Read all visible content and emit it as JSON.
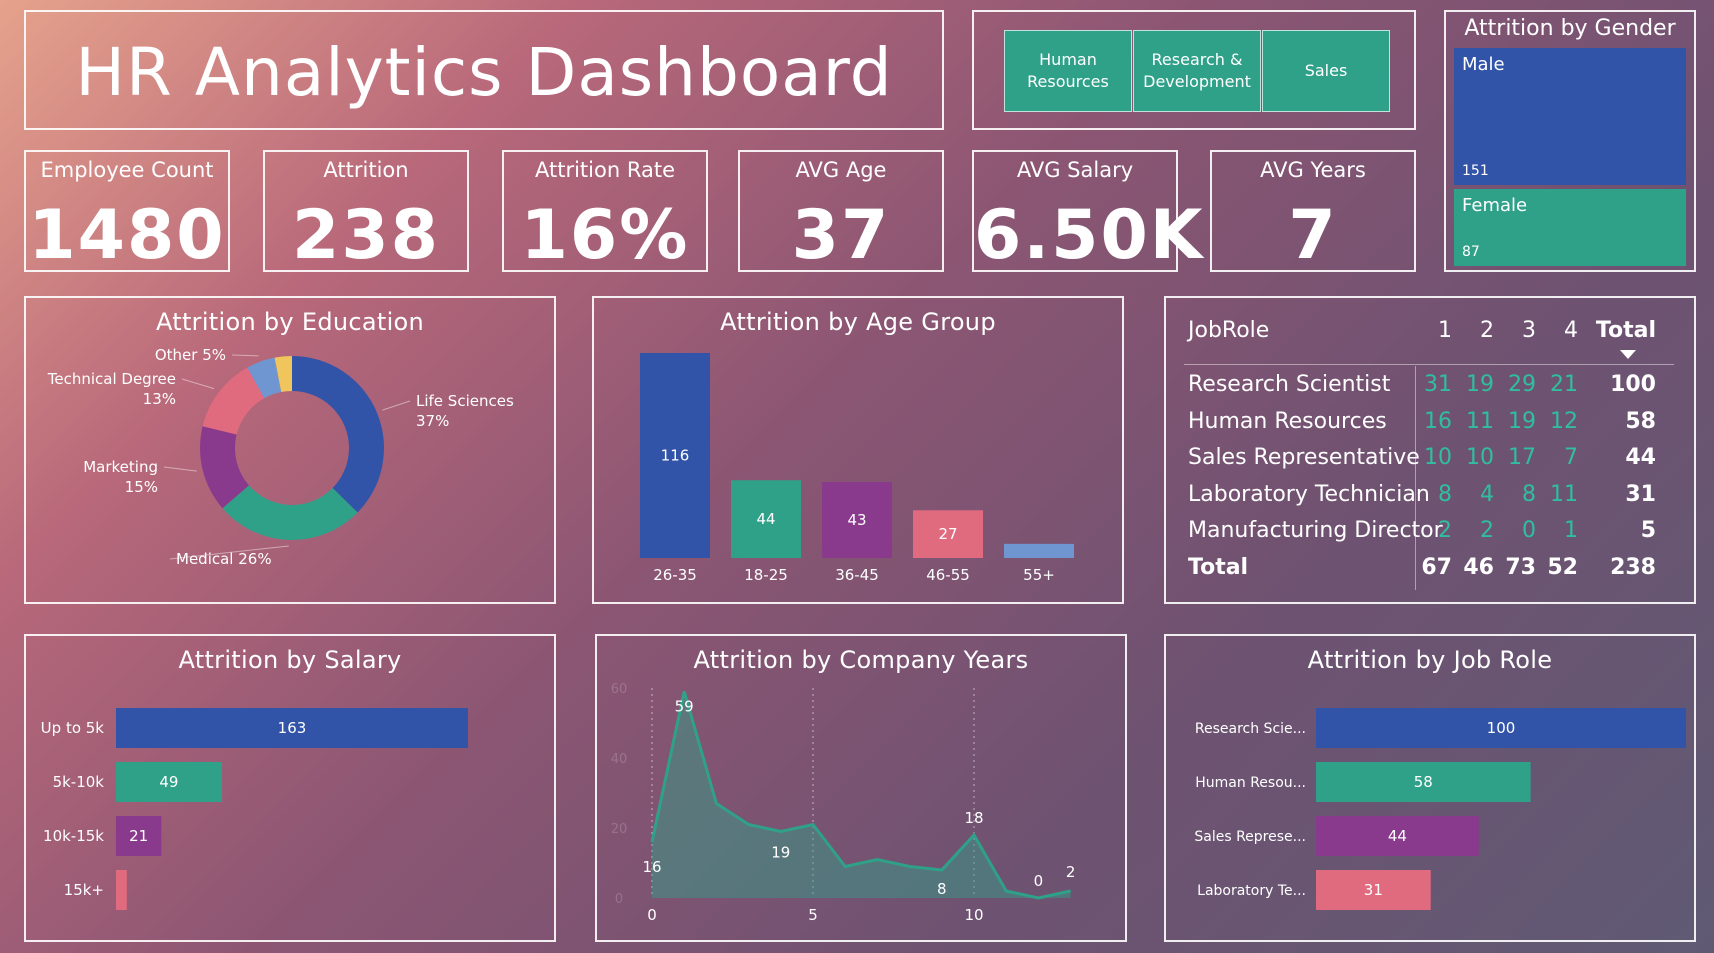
{
  "header": {
    "title": "HR Analytics Dashboard"
  },
  "slicer": {
    "items": [
      "Human Resources",
      "Research & Development",
      "Sales"
    ]
  },
  "kpis": [
    {
      "label": "Employee Count",
      "value": "1480"
    },
    {
      "label": "Attrition",
      "value": "238"
    },
    {
      "label": "Attrition Rate",
      "value": "16%"
    },
    {
      "label": "AVG Age",
      "value": "37"
    },
    {
      "label": "AVG Salary",
      "value": "6.50K"
    },
    {
      "label": "AVG Years",
      "value": "7"
    }
  ],
  "gender": {
    "title": "Attrition by Gender",
    "items": [
      {
        "label": "Male",
        "value": "151",
        "color": "#3153a8"
      },
      {
        "label": "Female",
        "value": "87",
        "color": "#2fa189"
      }
    ]
  },
  "matrix": {
    "header": {
      "role": "JobRole",
      "c1": "1",
      "c2": "2",
      "c3": "3",
      "c4": "4",
      "total": "Total"
    },
    "rows": [
      {
        "role": "Research Scientist",
        "c1": "31",
        "c2": "19",
        "c3": "29",
        "c4": "21",
        "total": "100"
      },
      {
        "role": "Human Resources",
        "c1": "16",
        "c2": "11",
        "c3": "19",
        "c4": "12",
        "total": "58"
      },
      {
        "role": "Sales Representative",
        "c1": "10",
        "c2": "10",
        "c3": "17",
        "c4": "7",
        "total": "44"
      },
      {
        "role": "Laboratory Technician",
        "c1": "8",
        "c2": "4",
        "c3": "8",
        "c4": "11",
        "total": "31"
      },
      {
        "role": "Manufacturing Director",
        "c1": "2",
        "c2": "2",
        "c3": "0",
        "c4": "1",
        "total": "5"
      }
    ],
    "total": {
      "role": "Total",
      "c1": "67",
      "c2": "46",
      "c3": "73",
      "c4": "52",
      "total": "238"
    }
  },
  "chart_data": [
    {
      "id": "education",
      "type": "pie",
      "title": "Attrition by Education",
      "slices": [
        {
          "label": "Life Sciences",
          "display": "37%",
          "value": 37,
          "color": "#3153a8"
        },
        {
          "label": "Medical",
          "display": "26%",
          "value": 26,
          "color": "#2fa189"
        },
        {
          "label": "Marketing",
          "display": "15%",
          "value": 15,
          "color": "#8a3a8c"
        },
        {
          "label": "Technical Degree",
          "display": "13%",
          "value": 13,
          "color": "#e06b7f"
        },
        {
          "label": "Other",
          "display": "5%",
          "value": 5,
          "color": "#6f96d1"
        },
        {
          "label": "",
          "display": "",
          "value": 3,
          "color": "#f0c55c"
        }
      ]
    },
    {
      "id": "agegroup",
      "type": "bar",
      "title": "Attrition by Age Group",
      "categories": [
        "26-35",
        "18-25",
        "36-45",
        "46-55",
        "55+"
      ],
      "values": [
        116,
        44,
        43,
        27,
        8
      ],
      "labels": [
        "116",
        "44",
        "43",
        "27",
        ""
      ],
      "colors": [
        "#3153a8",
        "#2fa189",
        "#8a3a8c",
        "#e06b7f",
        "#6f96d1"
      ],
      "ylim": [
        0,
        116
      ]
    },
    {
      "id": "salary",
      "type": "bar",
      "orientation": "horizontal",
      "title": "Attrition by Salary",
      "categories": [
        "Up to 5k",
        "5k-10k",
        "10k-15k",
        "15k+"
      ],
      "values": [
        163,
        49,
        21,
        5
      ],
      "labels": [
        "163",
        "49",
        "21",
        ""
      ],
      "colors": [
        "#3153a8",
        "#2fa189",
        "#8a3a8c",
        "#e06b7f"
      ]
    },
    {
      "id": "years",
      "type": "area",
      "title": "Attrition by Company Years",
      "x": [
        0,
        1,
        2,
        3,
        4,
        5,
        6,
        7,
        8,
        9,
        10,
        11,
        12,
        13
      ],
      "y": [
        16,
        59,
        27,
        21,
        19,
        21,
        9,
        11,
        9,
        8,
        18,
        2,
        0,
        2
      ],
      "point_labels": {
        "0": "16",
        "1": "59",
        "4": "19",
        "9": "8",
        "10": "18",
        "12": "0",
        "13": "2"
      },
      "xticks": [
        "0",
        "5",
        "10"
      ],
      "yticks": [
        "0",
        "20",
        "40",
        "60"
      ],
      "ylim": [
        0,
        60
      ],
      "color": "#2fa189"
    },
    {
      "id": "jobrole",
      "type": "bar",
      "orientation": "horizontal",
      "title": "Attrition by Job Role",
      "categories": [
        "Research Scie...",
        "Human Resou...",
        "Sales Represe...",
        "Laboratory Te..."
      ],
      "values": [
        100,
        58,
        44,
        31
      ],
      "labels": [
        "100",
        "58",
        "44",
        "31"
      ],
      "colors": [
        "#3153a8",
        "#2fa189",
        "#8a3a8c",
        "#e06b7f"
      ]
    }
  ]
}
